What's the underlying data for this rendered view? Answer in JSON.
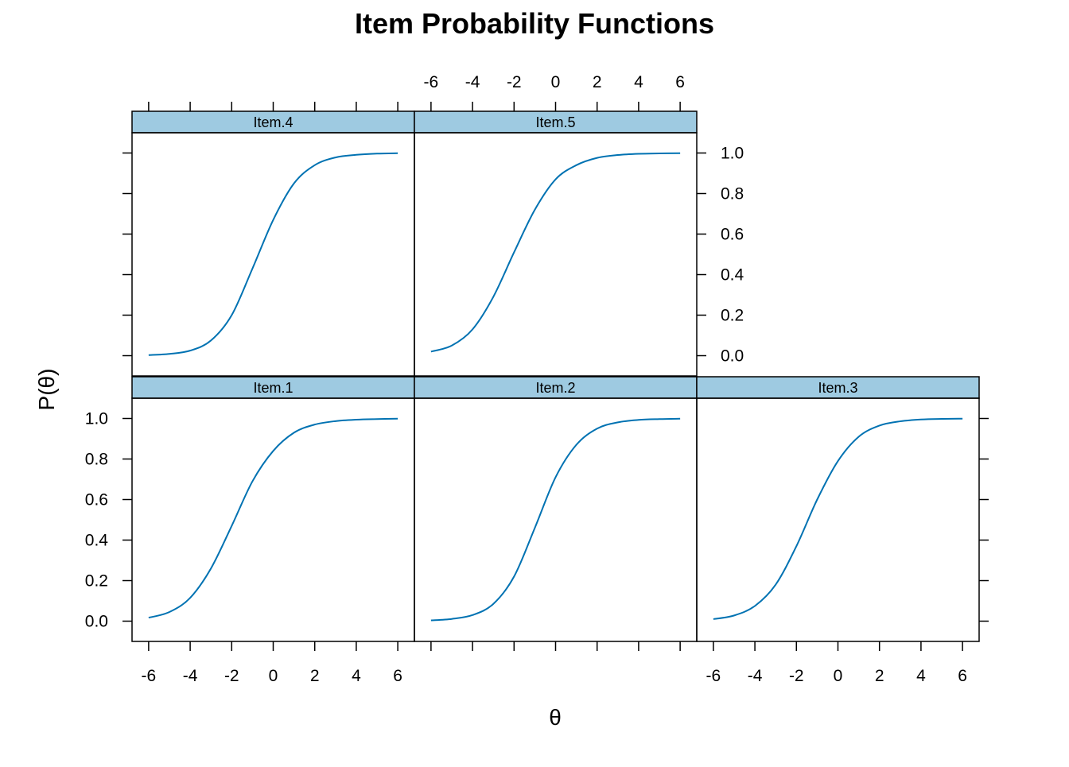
{
  "chart_data": {
    "type": "line",
    "title": "Item Probability Functions",
    "xlabel": "θ",
    "ylabel": "P(θ)",
    "xlim": [
      -6.8,
      6.8
    ],
    "ylim": [
      -0.1,
      1.1
    ],
    "x_ticks": [
      -6,
      -4,
      -2,
      0,
      2,
      4,
      6
    ],
    "x_tick_labels": [
      "-6",
      "-4",
      "-2",
      "0",
      "2",
      "4",
      "6"
    ],
    "y_ticks": [
      0.0,
      0.2,
      0.4,
      0.6,
      0.8,
      1.0
    ],
    "y_tick_labels": [
      "0.0",
      "0.2",
      "0.4",
      "0.6",
      "0.8",
      "1.0"
    ],
    "grid": false,
    "legend": "none",
    "strip_color": "#9ecae1",
    "line_color": "#0072b2",
    "layout": "3 columns x 2 rows; bottom row Item.1, Item.2, Item.3; top row Item.4, Item.5",
    "x": [
      -6,
      -5,
      -4,
      -3,
      -2,
      -1,
      0,
      1,
      2,
      3,
      4,
      5,
      6
    ],
    "panels": [
      {
        "name": "Item.1",
        "row": 0,
        "col": 0,
        "values": [
          0.017,
          0.045,
          0.115,
          0.26,
          0.47,
          0.69,
          0.84,
          0.93,
          0.97,
          0.987,
          0.994,
          0.997,
          0.999
        ]
      },
      {
        "name": "Item.2",
        "row": 0,
        "col": 1,
        "values": [
          0.004,
          0.011,
          0.03,
          0.085,
          0.22,
          0.46,
          0.71,
          0.87,
          0.95,
          0.981,
          0.993,
          0.997,
          0.999
        ]
      },
      {
        "name": "Item.3",
        "row": 0,
        "col": 2,
        "values": [
          0.01,
          0.028,
          0.075,
          0.18,
          0.37,
          0.6,
          0.79,
          0.91,
          0.965,
          0.986,
          0.995,
          0.998,
          0.999
        ]
      },
      {
        "name": "Item.4",
        "row": 1,
        "col": 0,
        "values": [
          0.003,
          0.009,
          0.025,
          0.075,
          0.2,
          0.43,
          0.67,
          0.85,
          0.94,
          0.978,
          0.991,
          0.997,
          0.999
        ]
      },
      {
        "name": "Item.5",
        "row": 1,
        "col": 1,
        "values": [
          0.02,
          0.05,
          0.13,
          0.29,
          0.51,
          0.72,
          0.87,
          0.94,
          0.976,
          0.99,
          0.996,
          0.998,
          0.999
        ]
      }
    ]
  }
}
